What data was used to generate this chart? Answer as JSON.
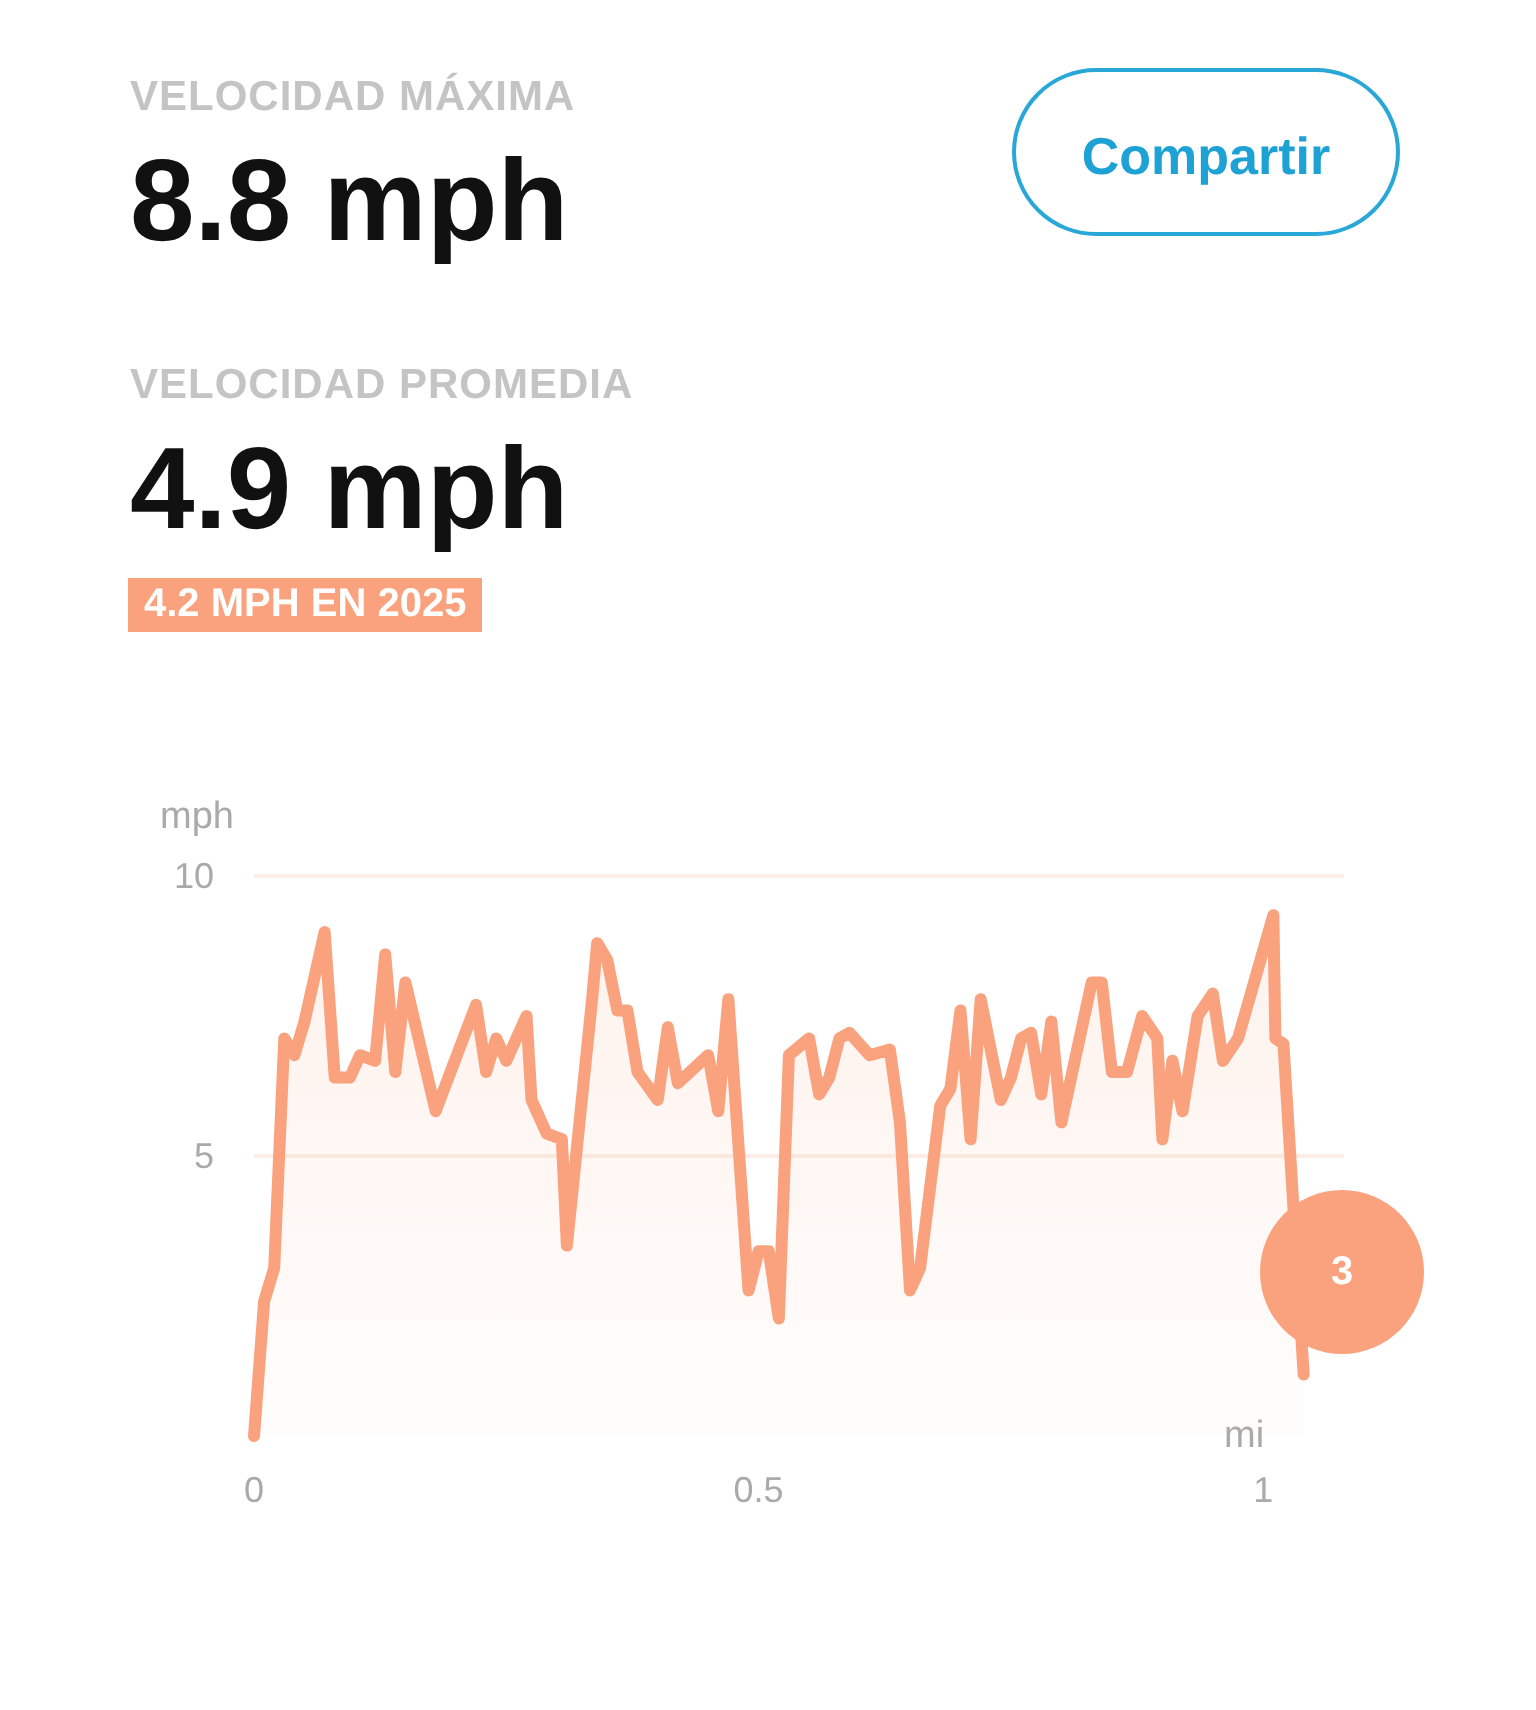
{
  "chart_data": {
    "type": "area",
    "title": "VELOCIDAD MÁXIMA",
    "subtitle": "8.8 mph",
    "annotations": [
      "VELOCIDAD PROMEDIA",
      "4.9 mph",
      "4.2 MPH EN 2025",
      "Compartir",
      "3"
    ],
    "xlabel": "mi",
    "ylabel": "mph",
    "x": [
      0,
      0.01,
      0.02,
      0.03,
      0.04,
      0.05,
      0.07,
      0.08,
      0.095,
      0.105,
      0.12,
      0.13,
      0.14,
      0.15,
      0.18,
      0.22,
      0.23,
      0.24,
      0.25,
      0.27,
      0.275,
      0.29,
      0.305,
      0.31,
      0.335,
      0.34,
      0.35,
      0.36,
      0.37,
      0.38,
      0.4,
      0.41,
      0.42,
      0.45,
      0.46,
      0.47,
      0.49,
      0.5,
      0.51,
      0.52,
      0.53,
      0.55,
      0.56,
      0.57,
      0.58,
      0.59,
      0.61,
      0.63,
      0.64,
      0.65,
      0.66,
      0.68,
      0.69,
      0.7,
      0.71,
      0.72,
      0.74,
      0.75,
      0.76,
      0.77,
      0.78,
      0.79,
      0.8,
      0.83,
      0.84,
      0.85,
      0.865,
      0.88,
      0.895,
      0.9,
      0.91,
      0.92,
      0.935,
      0.95,
      0.96,
      0.975,
      1.01,
      1.012,
      1.02,
      1.04
    ],
    "series": [
      {
        "color": "#f9a27d",
        "values": [
          0,
          2.4,
          3.0,
          7.1,
          6.8,
          7.4,
          9.0,
          6.4,
          6.4,
          6.8,
          6.7,
          8.6,
          6.5,
          8.1,
          5.8,
          7.7,
          6.5,
          7.1,
          6.7,
          7.5,
          6.0,
          5.4,
          5.3,
          3.4,
          7.8,
          8.8,
          8.5,
          7.6,
          7.6,
          6.5,
          6.0,
          7.3,
          6.3,
          6.8,
          5.8,
          7.8,
          2.6,
          3.3,
          3.3,
          2.1,
          6.8,
          7.1,
          6.1,
          6.4,
          7.1,
          7.2,
          6.8,
          6.9,
          5.6,
          2.6,
          3.0,
          5.9,
          6.2,
          7.6,
          5.3,
          7.8,
          6.0,
          6.4,
          7.1,
          7.2,
          6.1,
          7.4,
          5.6,
          8.1,
          8.1,
          6.5,
          6.5,
          7.5,
          7.1,
          5.3,
          6.7,
          5.8,
          7.5,
          7.9,
          6.7,
          7.1,
          9.3,
          7.1,
          7.0,
          1.1
        ]
      }
    ],
    "xlim": [
      0,
      1.08
    ],
    "xticks": [
      0,
      0.5,
      1
    ],
    "ylim": [
      0,
      10
    ],
    "yticks": [
      5,
      10
    ],
    "grid": "y",
    "marker": "none",
    "line_style": "solid"
  }
}
